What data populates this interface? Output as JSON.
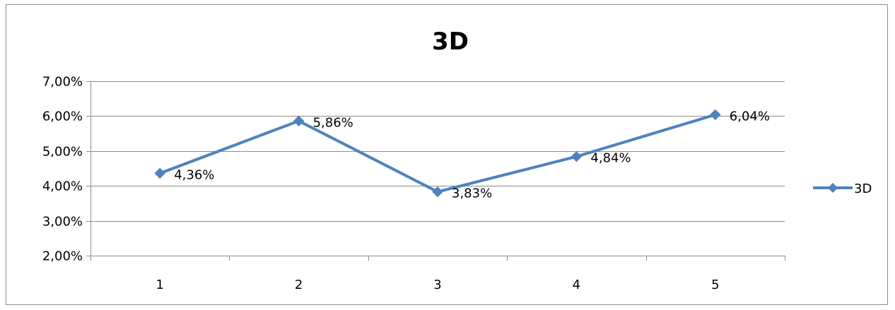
{
  "chart_data": {
    "type": "line",
    "title": "3D",
    "categories": [
      "1",
      "2",
      "3",
      "4",
      "5"
    ],
    "series": [
      {
        "name": "3D",
        "values": [
          4.36,
          5.86,
          3.83,
          4.84,
          6.04
        ],
        "labels": [
          "4,36%",
          "5,86%",
          "3,83%",
          "4,84%",
          "6,04%"
        ],
        "color": "#4F81BD",
        "marker": "diamond"
      }
    ],
    "ylim": [
      2,
      7
    ],
    "yticks": [
      2,
      3,
      4,
      5,
      6,
      7
    ],
    "ytick_labels": [
      "2,00%",
      "3,00%",
      "4,00%",
      "5,00%",
      "6,00%",
      "7,00%"
    ],
    "grid": true,
    "legend_position": "right"
  }
}
